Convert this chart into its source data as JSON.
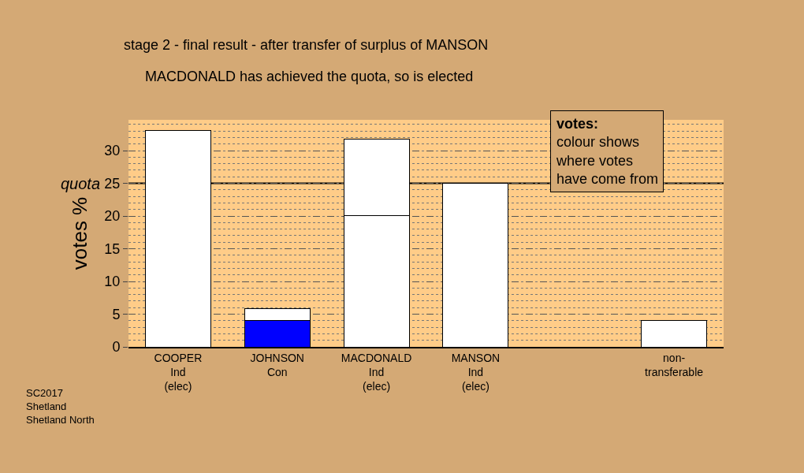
{
  "chart_data": {
    "type": "bar",
    "stacked": true,
    "title": "stage 2 - final result - after transfer of surplus of MANSON",
    "subtitle": "MACDONALD has achieved the quota, so is elected",
    "ylabel": "votes %",
    "categories": [
      "COOPER\nInd\n(elec)",
      "JOHNSON\nCon",
      "MACDONALD\nInd\n(elec)",
      "MANSON\nInd\n(elec)",
      null,
      "non-\ntransferable"
    ],
    "series": [
      {
        "colors": [
          "#ffffff",
          "#0000ff",
          "#ffffff",
          "#ffffff",
          "#ffffff",
          "#ffffff"
        ],
        "values": [
          33.1,
          4.0,
          20.1,
          25.0,
          null,
          4.0
        ]
      },
      {
        "color": "#ffffff",
        "values": [
          null,
          1.9,
          11.7,
          null,
          null,
          null
        ]
      }
    ],
    "ylim": [
      0,
      34.7
    ],
    "yticks": [
      0,
      5,
      10,
      15,
      20,
      25,
      30
    ],
    "ref_lines": [
      {
        "axis": "y",
        "value": 25,
        "label": "quota",
        "color": "#000000",
        "line_style": "solid"
      }
    ],
    "grid": "y",
    "annotations": [
      "votes:\ncolour shows\nwhere votes\nhave come from",
      "SC2017\nShetland\nShetland North"
    ]
  }
}
